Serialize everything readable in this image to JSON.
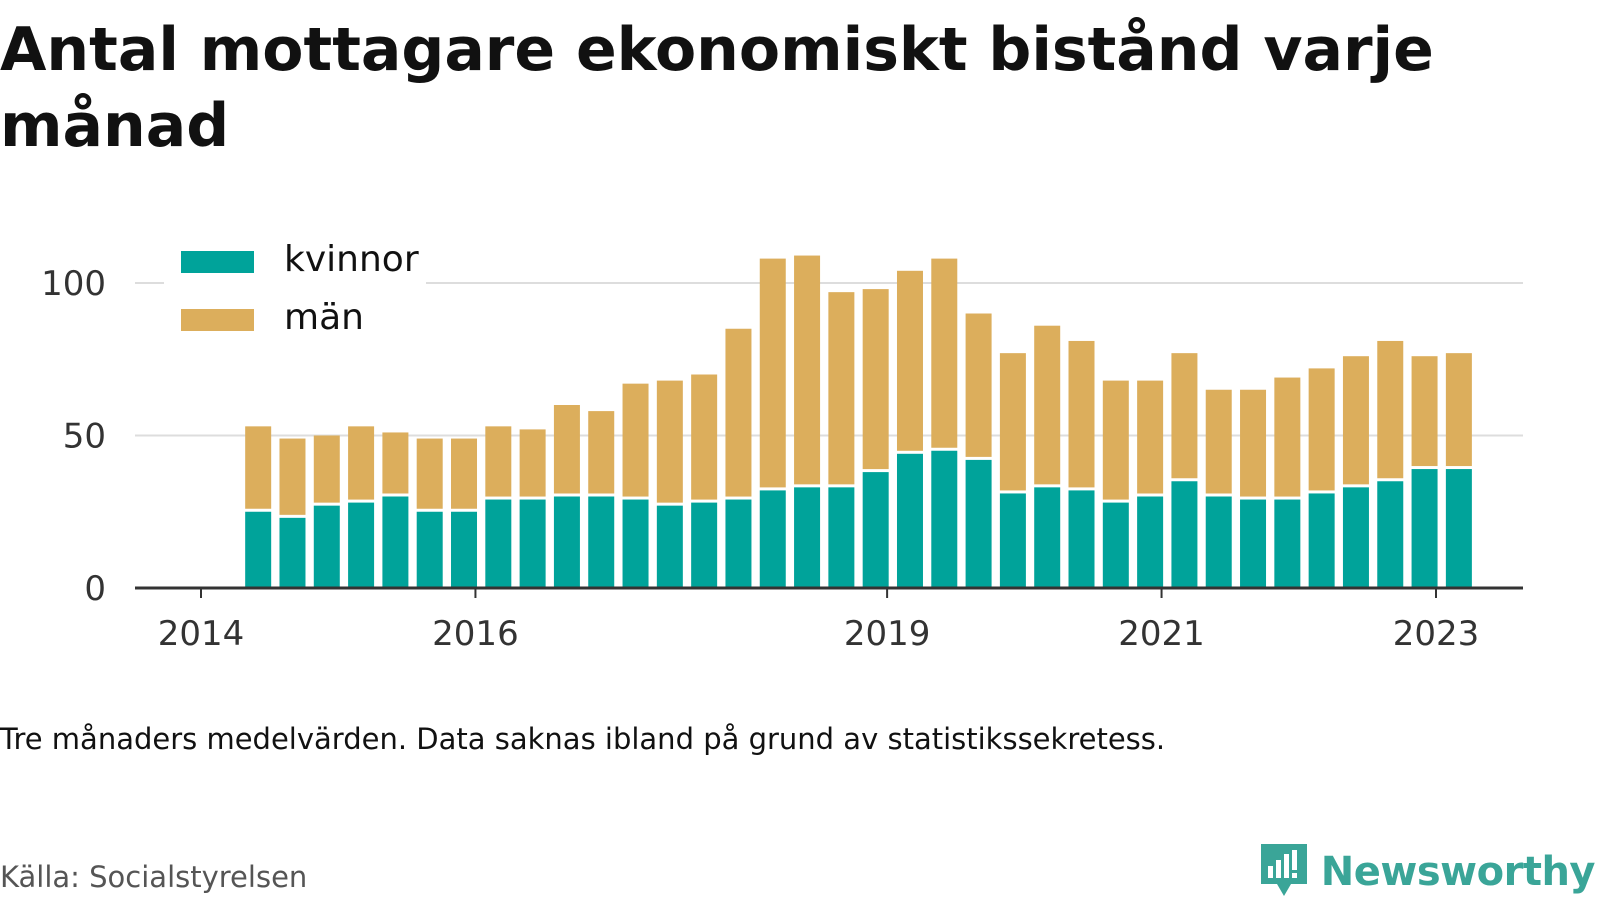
{
  "title": "Antal mottagare ekonomiskt bistånd varje månad",
  "note": "Tre månaders medelvärden. Data saknas ibland på grund av statistikssekretess.",
  "source": "Källa: Socialstyrelsen",
  "brand": {
    "name": "Newsworthy",
    "icon": "newsworthy-logo-icon"
  },
  "colors": {
    "kvinnor": "#00a39a",
    "man": "#dcae5c",
    "grid": "#dddddd",
    "axis": "#333333",
    "brand": "#3aa598"
  },
  "chart_data": {
    "type": "bar",
    "stacked": true,
    "title": "Antal mottagare ekonomiskt bistånd varje månad",
    "xlabel": "",
    "ylabel": "",
    "ylim": [
      0,
      110
    ],
    "yticks": [
      0,
      50,
      100
    ],
    "xticks": [
      "2014",
      "2016",
      "2019",
      "2021",
      "2023"
    ],
    "grid": true,
    "legend_position": "top-left",
    "x": [
      "2014-06",
      "2014-09",
      "2014-12",
      "2015-03",
      "2015-06",
      "2015-09",
      "2015-12",
      "2016-03",
      "2016-06",
      "2016-09",
      "2016-12",
      "2017-03",
      "2017-06",
      "2017-09",
      "2017-12",
      "2018-03",
      "2018-06",
      "2018-09",
      "2018-12",
      "2019-03",
      "2019-06",
      "2019-09",
      "2019-12",
      "2020-03",
      "2020-06",
      "2020-09",
      "2020-12",
      "2021-03",
      "2021-06",
      "2021-09",
      "2021-12",
      "2022-03",
      "2022-06",
      "2022-09",
      "2022-12",
      "2023-03"
    ],
    "series": [
      {
        "name": "kvinnor",
        "values": [
          25,
          23,
          27,
          28,
          30,
          25,
          25,
          29,
          29,
          30,
          30,
          29,
          27,
          28,
          29,
          32,
          33,
          33,
          38,
          44,
          45,
          42,
          31,
          33,
          32,
          28,
          30,
          35,
          30,
          29,
          29,
          31,
          33,
          35,
          39,
          39
        ]
      },
      {
        "name": "män",
        "values": [
          28,
          26,
          23,
          25,
          21,
          24,
          24,
          24,
          23,
          30,
          28,
          38,
          41,
          42,
          56,
          76,
          76,
          64,
          60,
          60,
          63,
          48,
          46,
          53,
          49,
          40,
          38,
          42,
          35,
          36,
          40,
          41,
          43,
          46,
          37,
          38
        ]
      }
    ]
  }
}
